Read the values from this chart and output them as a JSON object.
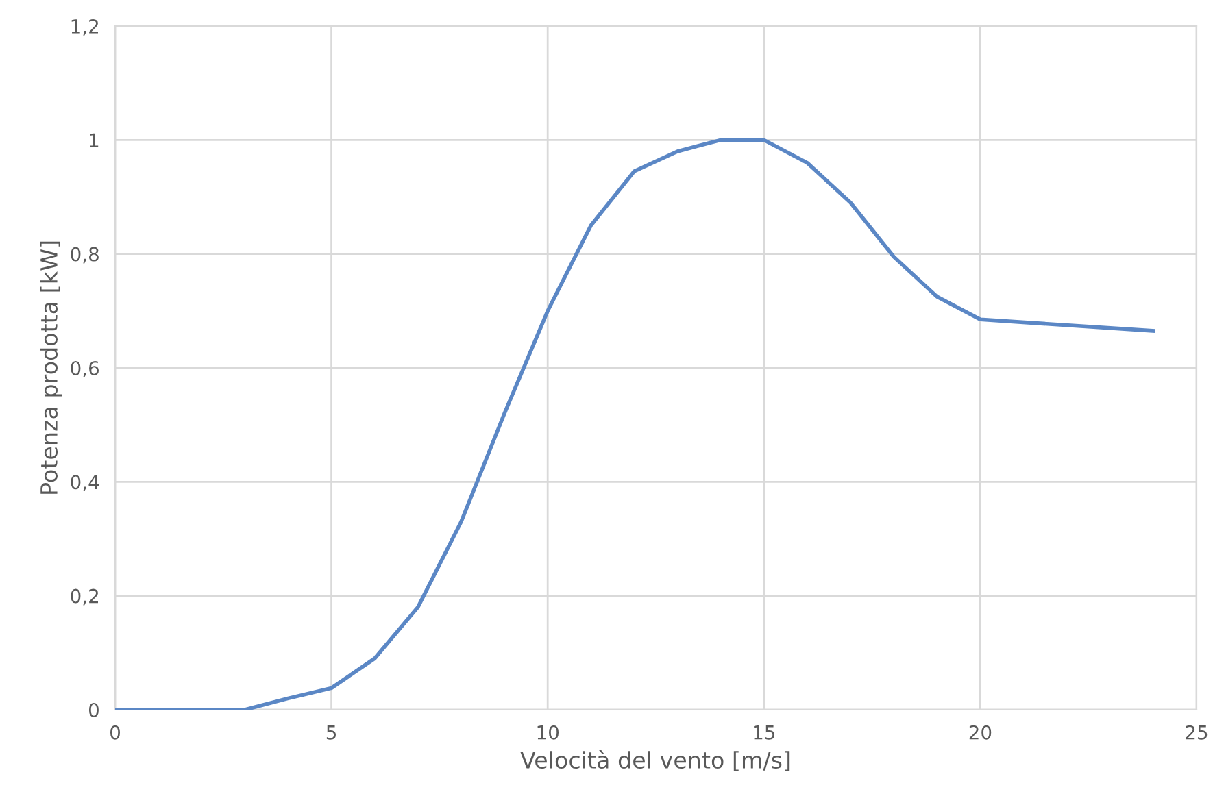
{
  "chart_data": {
    "type": "line",
    "xlabel": "Velocità del vento [m/s]",
    "ylabel": "Potenza prodotta [kW]",
    "x": [
      0,
      1,
      2,
      3,
      4,
      5,
      6,
      7,
      8,
      9,
      10,
      11,
      12,
      13,
      14,
      15,
      16,
      17,
      18,
      19,
      20,
      24
    ],
    "series": [
      {
        "color": "#5b87c5",
        "values": [
          0,
          0,
          0,
          0,
          0.02,
          0.038,
          0.09,
          0.18,
          0.33,
          0.52,
          0.7,
          0.85,
          0.945,
          0.98,
          1.0,
          1.0,
          0.96,
          0.89,
          0.795,
          0.725,
          0.685,
          0.665
        ]
      }
    ],
    "xlim": [
      0,
      25
    ],
    "xticks": [
      0,
      5,
      10,
      15,
      20,
      25
    ],
    "ylim": [
      0,
      1.2
    ],
    "yticks": [
      0,
      {
        "value": 0.2,
        "label": "0,2"
      },
      {
        "value": 0.4,
        "label": "0,4"
      },
      {
        "value": 0.6,
        "label": "0,6"
      },
      {
        "value": 0.8,
        "label": "0,8"
      },
      1,
      {
        "value": 1.2,
        "label": "1,2"
      }
    ],
    "grid": true,
    "marker": "none",
    "line_style": "solid"
  }
}
